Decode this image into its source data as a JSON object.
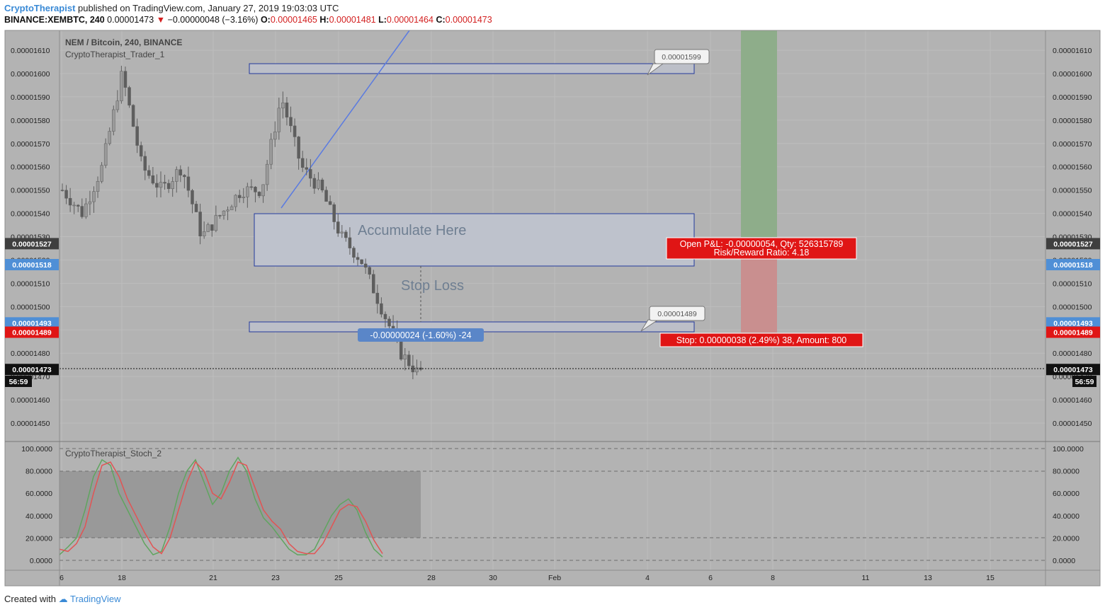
{
  "header": {
    "author": "CryptoTherapist",
    "published_text": "published on TradingView.com, January 27, 2019 19:03:03 UTC",
    "symbol": "BINANCE:XEMBTC, 240",
    "last": "0.00001473",
    "change": "−0.00000048 (−3.16%)",
    "open_label": "O:",
    "open": "0.00001465",
    "high_label": "H:",
    "high": "0.00001481",
    "low_label": "L:",
    "low": "0.00001464",
    "close_label": "C:",
    "close": "0.00001473"
  },
  "footer": {
    "created_with": "Created with",
    "brand": "TradingView"
  },
  "main_pane": {
    "title": "NEM / Bitcoin, 240, BINANCE",
    "indicator": "CryptoTherapist_Trader_1",
    "annotations": {
      "accumulate": "Accumulate Here",
      "stop_loss": "Stop Loss",
      "callout_top": "0.00001599",
      "callout_bottom": "0.00001489",
      "measure": "-0.00000024 (-1.60%) -24",
      "pnl_line1": "Open P&L: -0.00000054, Qty: 526315789",
      "pnl_line2": "Risk/Reward Ratio: 4.18",
      "stop_label": "Stop: 0.00000038 (2.49%) 38, Amount: 800"
    },
    "price_badges": [
      {
        "value": "0.00001527",
        "color": "#3f3f3f"
      },
      {
        "value": "0.00001518",
        "color": "#4f8fd6"
      },
      {
        "value": "0.00001493",
        "color": "#4f8fd6"
      },
      {
        "value": "0.00001489",
        "color": "#e01515"
      },
      {
        "value": "0.00001473",
        "color": "#111111"
      }
    ],
    "countdown": "56:59"
  },
  "stoch_pane": {
    "indicator": "CryptoTherapist_Stoch_2"
  },
  "chart_data": [
    {
      "type": "candlestick",
      "title": "NEM / Bitcoin, 240, BINANCE",
      "ylim": [
        1.44e-05,
        1.62e-05
      ],
      "y_ticks": [
        "0.00001450",
        "0.00001460",
        "0.00001470",
        "0.00001480",
        "0.00001490",
        "0.00001500",
        "0.00001510",
        "0.00001520",
        "0.00001530",
        "0.00001540",
        "0.00001550",
        "0.00001560",
        "0.00001570",
        "0.00001580",
        "0.00001590",
        "0.00001600",
        "0.00001610"
      ],
      "x_ticks": [
        "6",
        "18",
        "21",
        "23",
        "25",
        "28",
        "30",
        "Feb",
        "4",
        "6",
        "8",
        "11",
        "13",
        "15"
      ],
      "approx_close_path": [
        1.55e-05,
        1.54e-05,
        1.56e-05,
        1.6e-05,
        1.56e-05,
        1.55e-05,
        1.56e-05,
        1.53e-05,
        1.54e-05,
        1.55e-05,
        1.55e-05,
        1.59e-05,
        1.56e-05,
        1.55e-05,
        1.53e-05,
        1.52e-05,
        1.5e-05,
        1.48e-05,
        1.47e-05
      ],
      "last_close": 1.473e-05,
      "zones": [
        {
          "label": "",
          "top": 1.604e-05,
          "bottom": 1.6e-05
        },
        {
          "label": "Accumulate Here",
          "top": 1.54e-05,
          "bottom": 1.518e-05
        },
        {
          "label": "Stop Loss",
          "top": 1.493e-05,
          "bottom": 1.489e-05
        }
      ],
      "grid": true
    },
    {
      "type": "line",
      "title": "CryptoTherapist_Stoch_2",
      "ylim": [
        0,
        100
      ],
      "y_ticks": [
        "0.0000",
        "20.0000",
        "40.0000",
        "60.0000",
        "80.0000",
        "100.0000"
      ],
      "series": [
        {
          "name": "",
          "color": "#5fa55f",
          "values": [
            5,
            12,
            20,
            45,
            75,
            90,
            85,
            60,
            45,
            30,
            15,
            5,
            8,
            30,
            60,
            80,
            90,
            70,
            50,
            60,
            80,
            92,
            80,
            55,
            38,
            30,
            20,
            10,
            5,
            5,
            10,
            25,
            40,
            50,
            55,
            45,
            25,
            10,
            3
          ]
        },
        {
          "name": "",
          "color": "#e25454",
          "values": [
            10,
            8,
            15,
            30,
            60,
            85,
            88,
            75,
            55,
            40,
            25,
            12,
            6,
            20,
            45,
            70,
            88,
            80,
            60,
            55,
            70,
            88,
            85,
            65,
            45,
            35,
            28,
            15,
            8,
            6,
            6,
            15,
            30,
            45,
            50,
            48,
            35,
            18,
            6
          ]
        }
      ],
      "bands": [
        20,
        80
      ]
    }
  ]
}
